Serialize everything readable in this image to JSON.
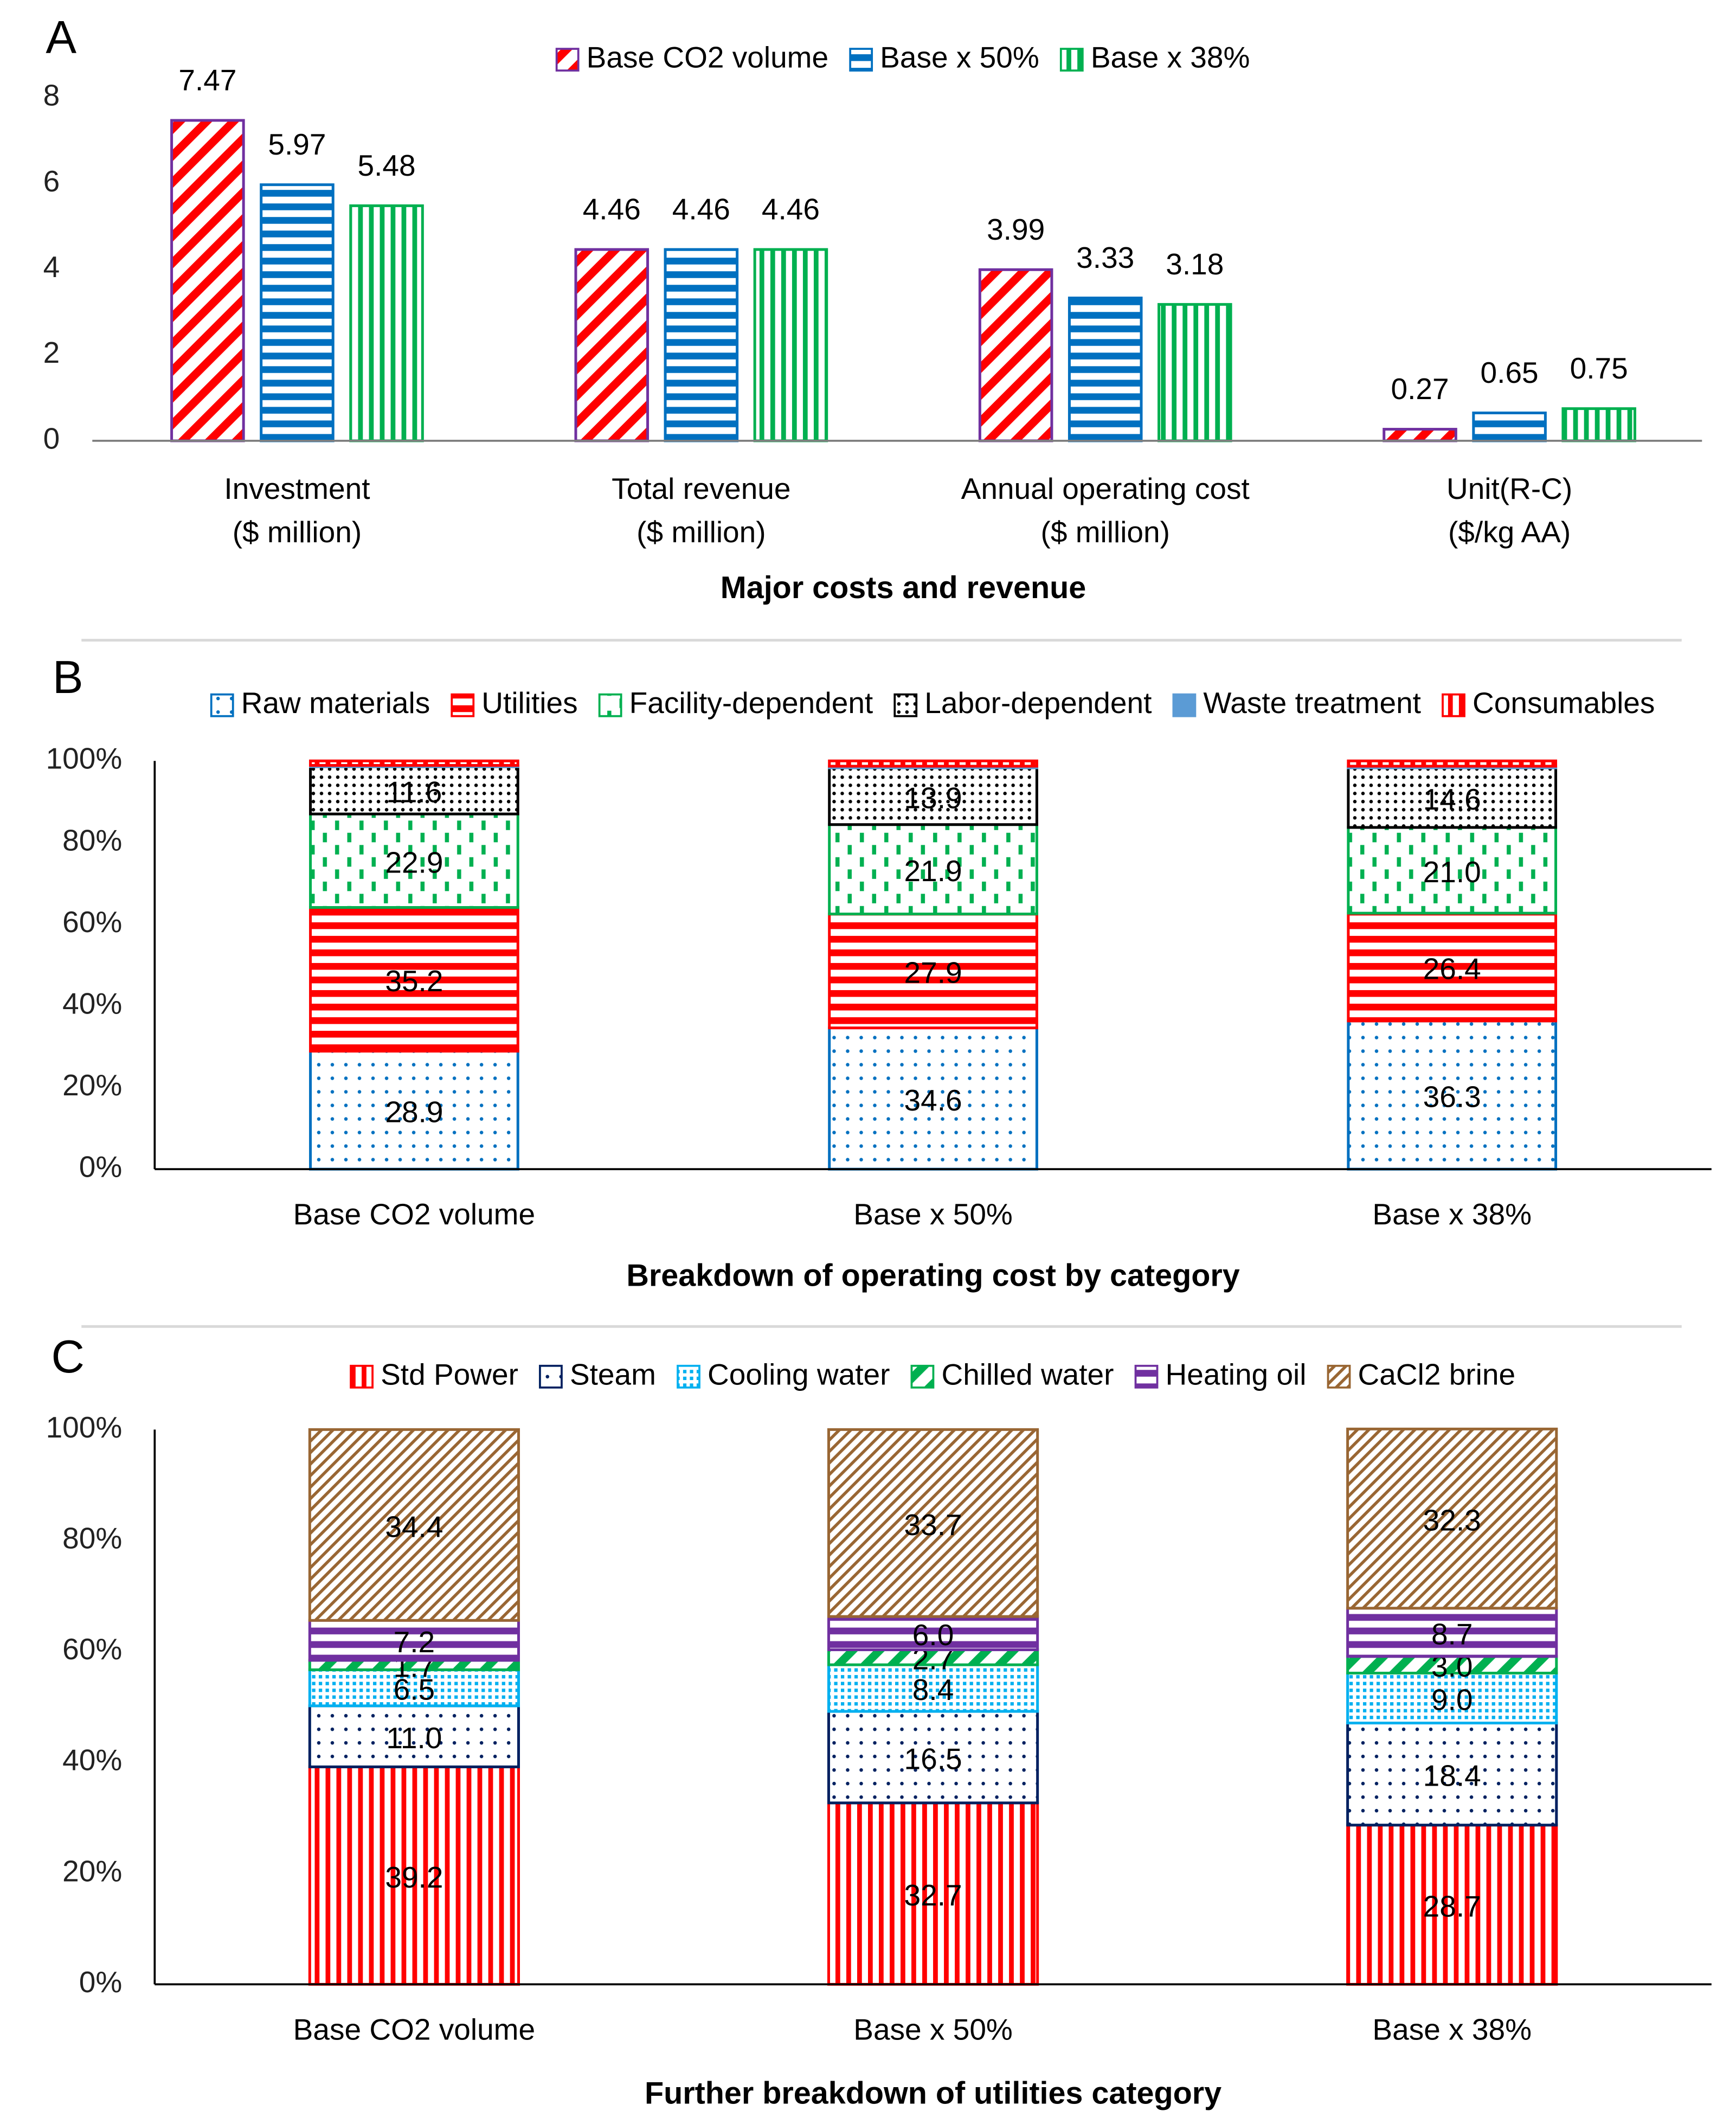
{
  "chart_data": [
    {
      "type": "bar",
      "panel_label": "A",
      "xlabel": "Major costs and revenue",
      "categories": [
        [
          "Investment",
          "($ million)"
        ],
        [
          "Total revenue",
          "($ million)"
        ],
        [
          "Annual operating cost",
          "($ million)"
        ],
        [
          "Unit(R-C)",
          "($/kg AA)"
        ]
      ],
      "series": [
        {
          "name": "Base CO2 volume",
          "color": "#ff0000",
          "edgecolor": "#7030a0",
          "pattern": "diagonal",
          "values": [
            7.47,
            4.46,
            3.99,
            0.27
          ]
        },
        {
          "name": "Base x 50%",
          "color": "#0070c0",
          "pattern": "hstripes",
          "values": [
            5.97,
            4.46,
            3.33,
            0.65
          ]
        },
        {
          "name": "Base x 38%",
          "color": "#00b050",
          "pattern": "vstripes",
          "values": [
            5.48,
            4.46,
            3.18,
            0.75
          ]
        }
      ],
      "ylim": [
        0,
        8
      ],
      "yticks": [
        0,
        2,
        4,
        6,
        8
      ],
      "grid": false
    },
    {
      "type": "stacked_bar",
      "panel_label": "B",
      "xlabel": "Breakdown of operating cost by category",
      "categories": [
        "Base CO2 volume",
        "Base x 50%",
        "Base x 38%"
      ],
      "series": [
        {
          "name": "Raw materials",
          "color": "#0070c0",
          "pattern": "dots",
          "values": [
            28.9,
            34.6,
            36.3
          ]
        },
        {
          "name": "Utilities",
          "color": "#ff0000",
          "pattern": "hstripes",
          "values": [
            35.2,
            27.9,
            26.4
          ]
        },
        {
          "name": "Facility-dependent",
          "color": "#00b050",
          "pattern": "dashes",
          "values": [
            22.9,
            21.9,
            21.0
          ],
          "value_labels": [
            "22.9",
            "21.9",
            "21.0"
          ]
        },
        {
          "name": "Labor-dependent",
          "color": "#000000",
          "pattern": "densedots",
          "values": [
            11.6,
            13.9,
            14.6
          ]
        },
        {
          "name": "Waste treatment",
          "color": "#5b9bd5",
          "pattern": "solid",
          "values": [
            0.3,
            0.4,
            0.4
          ],
          "labeled": false
        },
        {
          "name": "Consumables",
          "color": "#ff0000",
          "pattern": "vstripes",
          "values": [
            1.1,
            1.3,
            1.3
          ],
          "labeled": false
        }
      ],
      "ylim": [
        0,
        100
      ],
      "yticks": [
        {
          "value": 0,
          "label": "0%"
        },
        {
          "value": 20,
          "label": "20%"
        },
        {
          "value": 40,
          "label": "40%"
        },
        {
          "value": 60,
          "label": "60%"
        },
        {
          "value": 80,
          "label": "80%"
        },
        {
          "value": 100,
          "label": "100%"
        }
      ],
      "grid": false
    },
    {
      "type": "stacked_bar",
      "panel_label": "C",
      "xlabel": "Further breakdown of utilities category",
      "categories": [
        "Base CO2 volume",
        "Base x 50%",
        "Base x 38%"
      ],
      "series": [
        {
          "name": "Std Power",
          "color": "#ff0000",
          "pattern": "vstripes",
          "values": [
            39.2,
            32.7,
            28.7
          ]
        },
        {
          "name": "Steam",
          "color": "#002060",
          "pattern": "dots",
          "values": [
            11.0,
            16.5,
            18.4
          ],
          "value_labels": [
            "11.0",
            "16.5",
            "18.4"
          ]
        },
        {
          "name": "Cooling water",
          "color": "#00b0f0",
          "pattern": "checker",
          "values": [
            6.5,
            8.4,
            9.0
          ],
          "value_labels": [
            "6.5",
            "8.4",
            "9.0"
          ]
        },
        {
          "name": "Chilled water",
          "color": "#00b050",
          "pattern": "diagonal",
          "values": [
            1.7,
            2.7,
            3.0
          ],
          "value_labels": [
            "1.7",
            "2.7",
            "3.0"
          ]
        },
        {
          "name": "Heating oil",
          "color": "#7030a0",
          "pattern": "hstripes",
          "values": [
            7.2,
            6.0,
            8.7
          ],
          "value_labels": [
            "7.2",
            "6.0",
            "8.7"
          ]
        },
        {
          "name": "CaCl2 brine",
          "color": "#996633",
          "pattern": "finediagonal",
          "values": [
            34.4,
            33.7,
            32.3
          ]
        }
      ],
      "ylim": [
        0,
        100
      ],
      "yticks": [
        {
          "value": 0,
          "label": "0%"
        },
        {
          "value": 20,
          "label": "20%"
        },
        {
          "value": 40,
          "label": "40%"
        },
        {
          "value": 60,
          "label": "60%"
        },
        {
          "value": 80,
          "label": "80%"
        },
        {
          "value": 100,
          "label": "100%"
        }
      ],
      "grid": false
    }
  ]
}
